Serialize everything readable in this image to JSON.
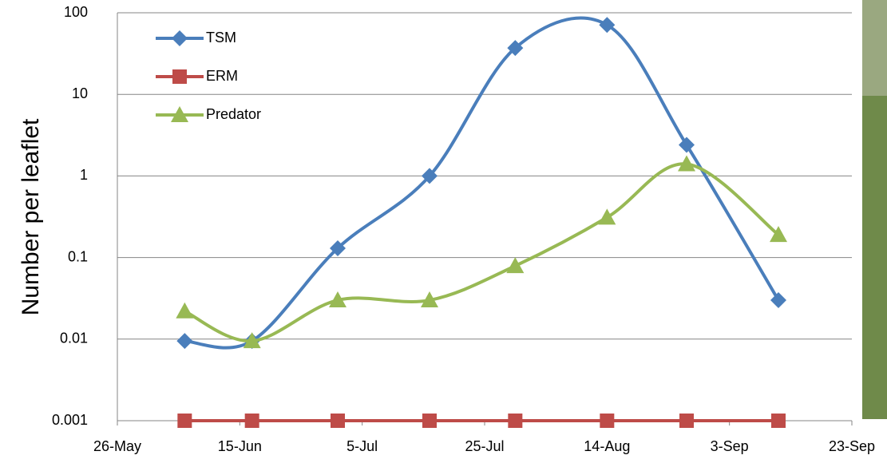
{
  "chart_data": {
    "type": "line",
    "y_label": "Number per leaflet",
    "log_scale": true,
    "grid": true,
    "smooth": true,
    "legend": "upper-left",
    "x": [
      "6-Jun",
      "17-Jun",
      "1-Jul",
      "16-Jul",
      "30-Jul",
      "14-Aug",
      "27-Aug",
      "11-Sep"
    ],
    "xlim": [
      "26-May",
      "23-Sep"
    ],
    "xticks": [
      "26-May",
      "15-Jun",
      "5-Jul",
      "25-Jul",
      "14-Aug",
      "3-Sep",
      "23-Sep"
    ],
    "ylim": [
      0.001,
      100
    ],
    "yticks": [
      0.001,
      0.01,
      0.1,
      1,
      10,
      100
    ],
    "series": [
      {
        "name": "TSM",
        "color": "#4a7ebb",
        "marker": "diamond",
        "values": [
          0.0095,
          0.0095,
          0.13,
          1.0,
          37,
          71,
          2.4,
          0.03
        ]
      },
      {
        "name": "ERM",
        "color": "#be4b48",
        "marker": "square",
        "values": [
          0.001,
          0.001,
          0.001,
          0.001,
          0.001,
          0.001,
          0.001,
          0.001
        ]
      },
      {
        "name": "Predator",
        "color": "#98b954",
        "marker": "triangle",
        "values": [
          0.022,
          0.0095,
          0.03,
          0.03,
          0.079,
          0.31,
          1.4,
          0.19
        ]
      }
    ]
  }
}
